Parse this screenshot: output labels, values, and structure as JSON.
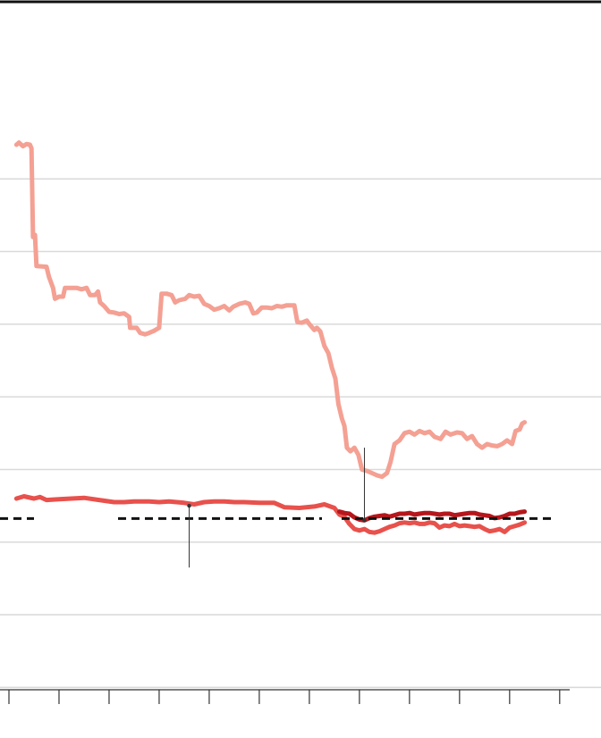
{
  "colors": {
    "background": "#ffffff",
    "top_rule": "#111111",
    "gridline": "#d9d9d9",
    "axis": "#333333",
    "reference_line": "#111111",
    "annotation_leader": "#333333"
  },
  "chart_data": {
    "type": "line",
    "title": "",
    "xlabel": "",
    "ylabel": "",
    "grid": true,
    "legend": "none",
    "tick_labels_shown": false,
    "x_range": [
      0,
      11.2
    ],
    "y_range": [
      0,
      1000
    ],
    "x_ticks": [
      0,
      1,
      2,
      3,
      4,
      5,
      6,
      7,
      8,
      9,
      10,
      11
    ],
    "y_gridlines": [
      750,
      650,
      550,
      450,
      350,
      250,
      150,
      50
    ],
    "reference_line": {
      "y": 282.5,
      "style": "dashed"
    },
    "series": [
      {
        "color": "#f4a093",
        "values": [
          [
            0.15,
            797
          ],
          [
            0.2,
            800
          ],
          [
            0.28,
            795
          ],
          [
            0.35,
            798
          ],
          [
            0.42,
            797
          ],
          [
            0.45,
            792
          ],
          [
            0.48,
            670
          ],
          [
            0.52,
            673
          ],
          [
            0.55,
            630
          ],
          [
            0.75,
            629
          ],
          [
            0.8,
            615
          ],
          [
            0.88,
            600
          ],
          [
            0.92,
            585
          ],
          [
            1.0,
            588
          ],
          [
            1.08,
            588
          ],
          [
            1.12,
            600
          ],
          [
            1.35,
            600
          ],
          [
            1.45,
            598
          ],
          [
            1.55,
            600
          ],
          [
            1.62,
            590
          ],
          [
            1.72,
            590
          ],
          [
            1.78,
            595
          ],
          [
            1.82,
            580
          ],
          [
            1.9,
            575
          ],
          [
            2.0,
            567
          ],
          [
            2.1,
            566
          ],
          [
            2.2,
            564
          ],
          [
            2.3,
            565
          ],
          [
            2.4,
            560
          ],
          [
            2.42,
            545
          ],
          [
            2.55,
            545
          ],
          [
            2.62,
            538
          ],
          [
            2.72,
            536
          ],
          [
            2.8,
            538
          ],
          [
            2.9,
            541
          ],
          [
            3.0,
            545
          ],
          [
            3.05,
            592
          ],
          [
            3.15,
            592
          ],
          [
            3.25,
            590
          ],
          [
            3.32,
            580
          ],
          [
            3.4,
            583
          ],
          [
            3.52,
            585
          ],
          [
            3.6,
            590
          ],
          [
            3.7,
            588
          ],
          [
            3.8,
            589
          ],
          [
            3.9,
            578
          ],
          [
            4.0,
            575
          ],
          [
            4.1,
            570
          ],
          [
            4.2,
            572
          ],
          [
            4.3,
            575
          ],
          [
            4.4,
            569
          ],
          [
            4.48,
            574
          ],
          [
            4.6,
            578
          ],
          [
            4.72,
            580
          ],
          [
            4.8,
            578
          ],
          [
            4.88,
            565
          ],
          [
            4.95,
            566
          ],
          [
            5.05,
            573
          ],
          [
            5.15,
            573
          ],
          [
            5.25,
            572
          ],
          [
            5.35,
            575
          ],
          [
            5.45,
            574
          ],
          [
            5.55,
            576
          ],
          [
            5.7,
            576
          ],
          [
            5.76,
            553
          ],
          [
            5.85,
            552
          ],
          [
            5.95,
            555
          ],
          [
            6.0,
            550
          ],
          [
            6.1,
            542
          ],
          [
            6.15,
            545
          ],
          [
            6.22,
            540
          ],
          [
            6.3,
            520
          ],
          [
            6.38,
            510
          ],
          [
            6.45,
            490
          ],
          [
            6.52,
            475
          ],
          [
            6.58,
            440
          ],
          [
            6.65,
            420
          ],
          [
            6.7,
            410
          ],
          [
            6.75,
            380
          ],
          [
            6.82,
            375
          ],
          [
            6.9,
            380
          ],
          [
            6.98,
            370
          ],
          [
            7.05,
            350
          ],
          [
            7.15,
            348
          ],
          [
            7.25,
            345
          ],
          [
            7.35,
            342
          ],
          [
            7.45,
            340
          ],
          [
            7.55,
            345
          ],
          [
            7.62,
            360
          ],
          [
            7.7,
            385
          ],
          [
            7.8,
            390
          ],
          [
            7.9,
            400
          ],
          [
            8.0,
            402
          ],
          [
            8.1,
            398
          ],
          [
            8.2,
            403
          ],
          [
            8.3,
            400
          ],
          [
            8.4,
            402
          ],
          [
            8.5,
            395
          ],
          [
            8.62,
            392
          ],
          [
            8.72,
            402
          ],
          [
            8.82,
            398
          ],
          [
            8.95,
            401
          ],
          [
            9.05,
            400
          ],
          [
            9.15,
            392
          ],
          [
            9.25,
            396
          ],
          [
            9.35,
            385
          ],
          [
            9.45,
            380
          ],
          [
            9.55,
            385
          ],
          [
            9.65,
            383
          ],
          [
            9.75,
            382
          ],
          [
            9.85,
            385
          ],
          [
            9.95,
            390
          ],
          [
            10.05,
            385
          ],
          [
            10.12,
            403
          ],
          [
            10.2,
            405
          ],
          [
            10.25,
            413
          ],
          [
            10.3,
            415
          ]
        ]
      },
      {
        "color": "#e8514c",
        "values": [
          [
            0.15,
            310
          ],
          [
            0.3,
            313
          ],
          [
            0.5,
            310
          ],
          [
            0.62,
            312
          ],
          [
            0.75,
            308
          ],
          [
            1.0,
            309
          ],
          [
            1.25,
            310
          ],
          [
            1.5,
            311
          ],
          [
            1.8,
            308
          ],
          [
            2.1,
            305
          ],
          [
            2.3,
            305
          ],
          [
            2.5,
            306
          ],
          [
            2.8,
            306
          ],
          [
            3.0,
            305
          ],
          [
            3.2,
            306
          ],
          [
            3.5,
            304
          ],
          [
            3.7,
            302
          ],
          [
            3.9,
            305
          ],
          [
            4.1,
            306
          ],
          [
            4.3,
            306
          ],
          [
            4.5,
            305
          ],
          [
            4.7,
            305
          ],
          [
            5.0,
            304
          ],
          [
            5.3,
            304
          ],
          [
            5.5,
            298
          ],
          [
            5.8,
            297
          ],
          [
            6.1,
            299
          ],
          [
            6.3,
            302
          ],
          [
            6.5,
            297
          ],
          [
            6.6,
            288
          ],
          [
            6.7,
            285
          ],
          [
            6.8,
            275
          ],
          [
            6.9,
            268
          ],
          [
            7.0,
            266
          ],
          [
            7.1,
            268
          ],
          [
            7.2,
            264
          ],
          [
            7.3,
            263
          ],
          [
            7.4,
            265
          ],
          [
            7.5,
            268
          ],
          [
            7.6,
            271
          ],
          [
            7.7,
            273
          ],
          [
            7.8,
            276
          ],
          [
            7.9,
            277
          ],
          [
            8.0,
            276
          ],
          [
            8.1,
            277
          ],
          [
            8.2,
            275
          ],
          [
            8.3,
            275
          ],
          [
            8.4,
            277
          ],
          [
            8.5,
            276
          ],
          [
            8.6,
            270
          ],
          [
            8.7,
            273
          ],
          [
            8.8,
            272
          ],
          [
            8.9,
            275
          ],
          [
            9.0,
            272
          ],
          [
            9.1,
            273
          ],
          [
            9.2,
            272
          ],
          [
            9.3,
            271
          ],
          [
            9.4,
            272
          ],
          [
            9.5,
            268
          ],
          [
            9.6,
            265
          ],
          [
            9.7,
            266
          ],
          [
            9.8,
            268
          ],
          [
            9.9,
            264
          ],
          [
            10.0,
            270
          ],
          [
            10.1,
            272
          ],
          [
            10.2,
            274
          ],
          [
            10.3,
            277
          ]
        ]
      },
      {
        "color": "#b5171c",
        "values": [
          [
            6.6,
            292
          ],
          [
            6.7,
            290
          ],
          [
            6.8,
            289
          ],
          [
            6.9,
            284
          ],
          [
            7.0,
            281
          ],
          [
            7.1,
            280
          ],
          [
            7.2,
            283
          ],
          [
            7.3,
            285
          ],
          [
            7.4,
            286
          ],
          [
            7.5,
            287
          ],
          [
            7.6,
            285
          ],
          [
            7.7,
            287
          ],
          [
            7.8,
            289
          ],
          [
            7.9,
            289
          ],
          [
            8.0,
            290
          ],
          [
            8.1,
            288
          ],
          [
            8.2,
            289
          ],
          [
            8.3,
            290
          ],
          [
            8.4,
            290
          ],
          [
            8.5,
            289
          ],
          [
            8.6,
            288
          ],
          [
            8.7,
            289
          ],
          [
            8.8,
            289
          ],
          [
            8.9,
            287
          ],
          [
            9.0,
            288
          ],
          [
            9.1,
            289
          ],
          [
            9.2,
            290
          ],
          [
            9.3,
            290
          ],
          [
            9.4,
            288
          ],
          [
            9.5,
            287
          ],
          [
            9.6,
            286
          ],
          [
            9.7,
            283
          ],
          [
            9.8,
            284
          ],
          [
            9.9,
            286
          ],
          [
            10.0,
            289
          ],
          [
            10.1,
            289
          ],
          [
            10.2,
            291
          ],
          [
            10.3,
            292
          ]
        ]
      }
    ],
    "annotation_leaders": [
      {
        "x": 3.6,
        "y_from": 300,
        "y_to": 215
      },
      {
        "x": 7.1,
        "y_from": 280,
        "y_to": 380
      }
    ]
  }
}
